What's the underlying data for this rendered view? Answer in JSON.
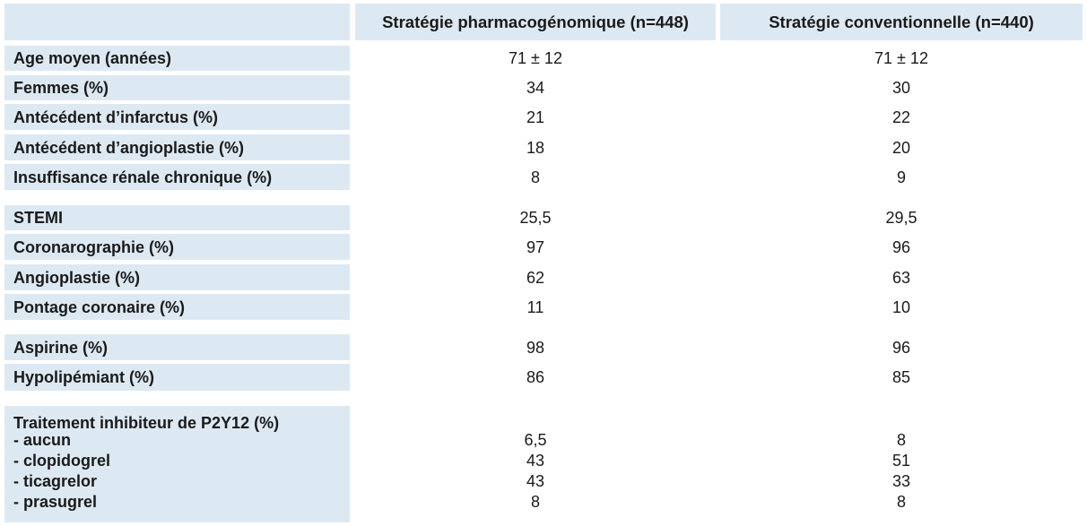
{
  "header": {
    "col1": "Stratégie pharmacogénomique (n=448)",
    "col2": "Stratégie conventionnelle (n=440)"
  },
  "rows": [
    {
      "label": "Age moyen (années)",
      "v1": "71 ± 12",
      "v2": "71 ± 12"
    },
    {
      "label": "Femmes (%)",
      "v1": "34",
      "v2": "30"
    },
    {
      "label": "Antécédent d’infarctus (%)",
      "v1": "21",
      "v2": "22"
    },
    {
      "label": "Antécédent d’angioplastie (%)",
      "v1": "18",
      "v2": "20"
    },
    {
      "label": "Insuffisance rénale chronique (%)",
      "v1": "8",
      "v2": "9"
    },
    {
      "label": "STEMI",
      "v1": "25,5",
      "v2": "29,5"
    },
    {
      "label": "Coronarographie (%)",
      "v1": "97",
      "v2": "96"
    },
    {
      "label": "Angioplastie (%)",
      "v1": "62",
      "v2": "63"
    },
    {
      "label": "Pontage coronaire (%)",
      "v1": "11",
      "v2": "10"
    },
    {
      "label": "Aspirine (%)",
      "v1": "98",
      "v2": "96"
    },
    {
      "label": "Hypolipémiant (%)",
      "v1": "86",
      "v2": "85"
    }
  ],
  "p2y12": {
    "title": "Traitement inhibiteur de P2Y12 (%)",
    "items": [
      {
        "label": "- aucun",
        "v1": "6,5",
        "v2": "8"
      },
      {
        "label": "- clopidogrel",
        "v1": "43",
        "v2": "51"
      },
      {
        "label": "- ticagrelor",
        "v1": "43",
        "v2": "33"
      },
      {
        "label": "- prasugrel",
        "v1": "8",
        "v2": "8"
      }
    ]
  }
}
